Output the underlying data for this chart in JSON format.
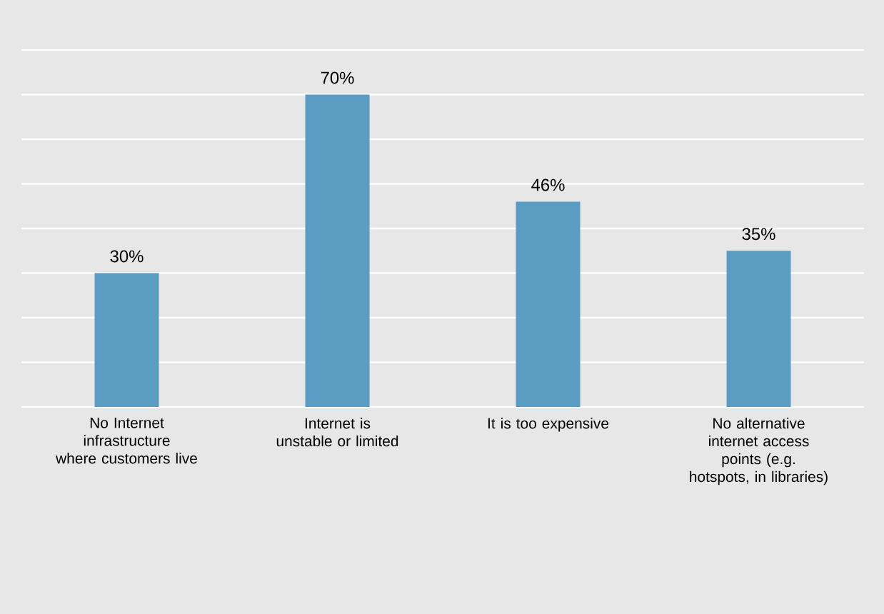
{
  "chart_data": {
    "type": "bar",
    "categories": [
      "No Internet infrastructure where customers live",
      "Internet is unstable or limited",
      "It is too expensive",
      "No alternative internet access points (e.g. hotspots, in libraries)"
    ],
    "values": [
      30,
      70,
      46,
      35
    ],
    "value_labels": [
      "30%",
      "70%",
      "46%",
      "35%"
    ],
    "color": "#5b9dc2",
    "ylim": [
      0,
      80
    ],
    "yticks": [
      {
        "value": 0,
        "label": null
      },
      {
        "value": 10,
        "label": null
      },
      {
        "value": 20,
        "label": null
      },
      {
        "value": 30,
        "label": null
      },
      {
        "value": 40,
        "label": null
      },
      {
        "value": 50,
        "label": null
      },
      {
        "value": 60,
        "label": null
      },
      {
        "value": 70,
        "label": null
      },
      {
        "value": 80,
        "label": null
      }
    ],
    "grid": "y",
    "tick_labels": "x"
  }
}
